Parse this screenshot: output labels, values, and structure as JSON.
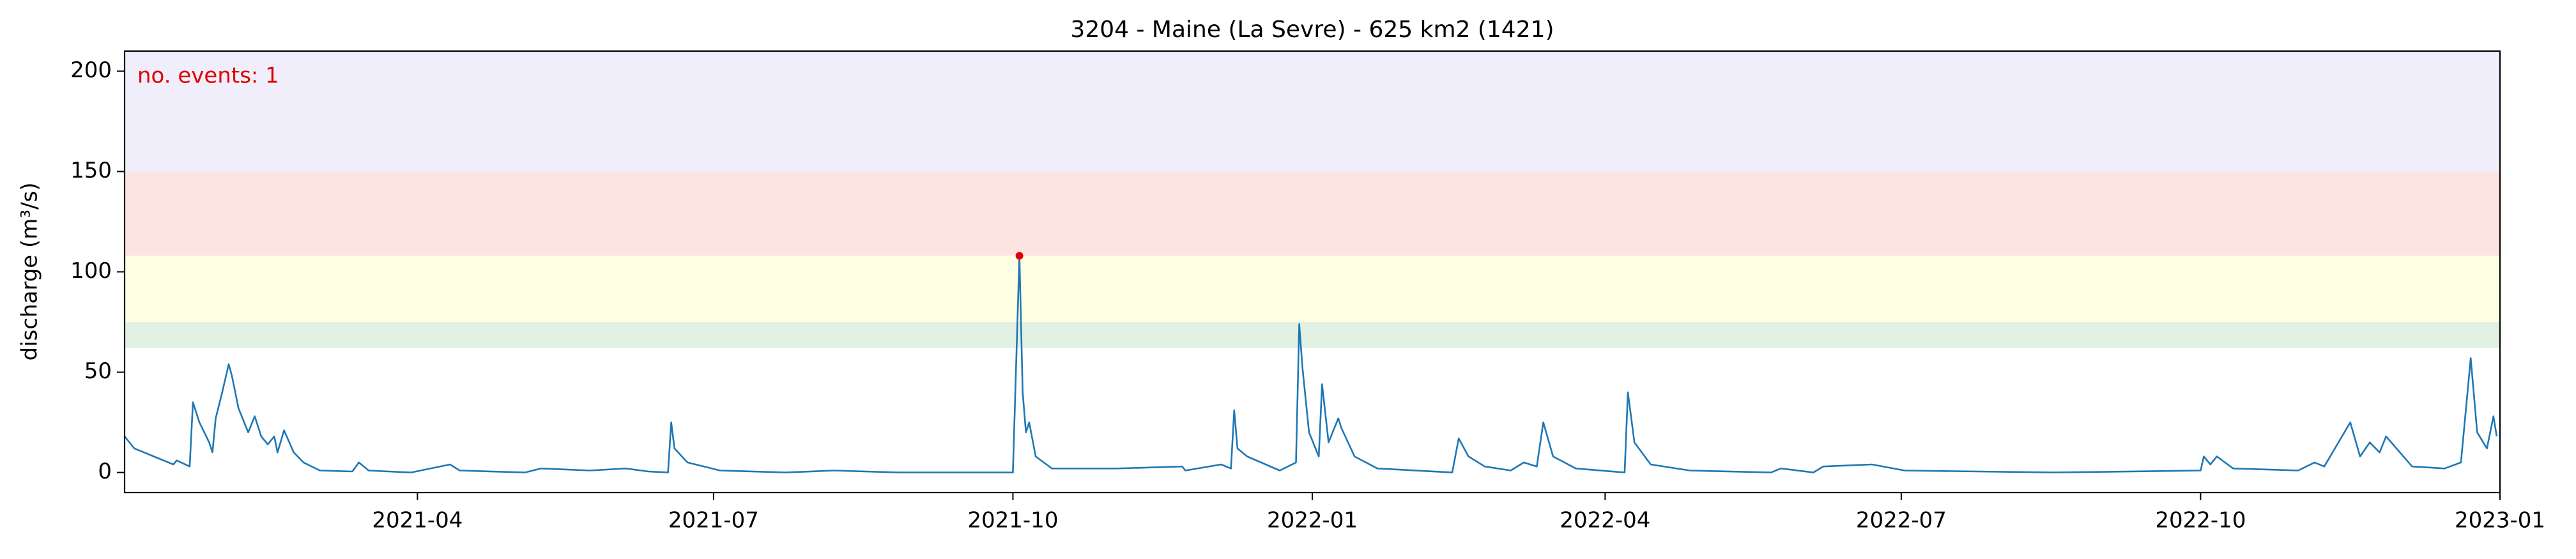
{
  "chart_data": {
    "type": "line",
    "title": "3204 - Maine (La Sevre) - 625 km2 (1421)",
    "ylabel": "discharge (m³/s)",
    "annotation": "no. events: 1",
    "annotation_color": "#e00000",
    "xlim": [
      "2021-01-01",
      "2023-01-01"
    ],
    "xticks": [
      "2021-04",
      "2021-07",
      "2021-10",
      "2022-01",
      "2022-04",
      "2022-07",
      "2022-10",
      "2023-01"
    ],
    "ylim": [
      -10,
      210
    ],
    "yticks": [
      0,
      50,
      100,
      150,
      200
    ],
    "grid": false,
    "bands": [
      {
        "from": 62,
        "to": 75,
        "color": "#e3f1e3"
      },
      {
        "from": 75,
        "to": 108,
        "color": "#fefee3"
      },
      {
        "from": 108,
        "to": 150,
        "color": "#fee3e3"
      },
      {
        "from": 150,
        "to": 210,
        "color": "#f1eefb"
      }
    ],
    "series": [
      {
        "name": "discharge",
        "color": "#1f77b4",
        "x": [
          "2021-01-01",
          "2021-01-04",
          "2021-01-10",
          "2021-01-16",
          "2021-01-17",
          "2021-01-21",
          "2021-01-22",
          "2021-01-24",
          "2021-01-27",
          "2021-01-28",
          "2021-01-29",
          "2021-01-31",
          "2021-02-02",
          "2021-02-03",
          "2021-02-05",
          "2021-02-06",
          "2021-02-08",
          "2021-02-10",
          "2021-02-12",
          "2021-02-14",
          "2021-02-16",
          "2021-02-17",
          "2021-02-19",
          "2021-02-22",
          "2021-02-25",
          "2021-03-02",
          "2021-03-12",
          "2021-03-14",
          "2021-03-17",
          "2021-03-30",
          "2021-04-11",
          "2021-04-14",
          "2021-05-04",
          "2021-05-09",
          "2021-05-24",
          "2021-06-04",
          "2021-06-11",
          "2021-06-17",
          "2021-06-18",
          "2021-06-19",
          "2021-06-23",
          "2021-07-03",
          "2021-07-23",
          "2021-08-07",
          "2021-08-27",
          "2021-10-01",
          "2021-10-03",
          "2021-10-04",
          "2021-10-05",
          "2021-10-06",
          "2021-10-08",
          "2021-10-13",
          "2021-11-02",
          "2021-11-22",
          "2021-11-23",
          "2021-12-04",
          "2021-12-07",
          "2021-12-08",
          "2021-12-09",
          "2021-12-12",
          "2021-12-22",
          "2021-12-27",
          "2021-12-28",
          "2021-12-29",
          "2021-12-31",
          "2022-01-03",
          "2022-01-04",
          "2022-01-06",
          "2022-01-09",
          "2022-01-10",
          "2022-01-14",
          "2022-01-21",
          "2022-02-13",
          "2022-02-15",
          "2022-02-18",
          "2022-02-23",
          "2022-03-03",
          "2022-03-07",
          "2022-03-11",
          "2022-03-13",
          "2022-03-16",
          "2022-03-23",
          "2022-04-07",
          "2022-04-08",
          "2022-04-10",
          "2022-04-15",
          "2022-04-27",
          "2022-05-22",
          "2022-05-25",
          "2022-06-04",
          "2022-06-07",
          "2022-06-22",
          "2022-07-02",
          "2022-08-17",
          "2022-10-01",
          "2022-10-02",
          "2022-10-04",
          "2022-10-06",
          "2022-10-11",
          "2022-10-31",
          "2022-11-05",
          "2022-11-08",
          "2022-11-16",
          "2022-11-19",
          "2022-11-22",
          "2022-11-25",
          "2022-11-27",
          "2022-12-05",
          "2022-12-15",
          "2022-12-20",
          "2022-12-23",
          "2022-12-25",
          "2022-12-28",
          "2022-12-30",
          "2022-12-31"
        ],
        "values": [
          18,
          12,
          8,
          4,
          6,
          3,
          35,
          25,
          15,
          10,
          27,
          40,
          54,
          48,
          32,
          28,
          20,
          28,
          18,
          14,
          18,
          10,
          21,
          10,
          5,
          1,
          0.5,
          5,
          1,
          0,
          4,
          1,
          0,
          2,
          1,
          2,
          0.5,
          0,
          25,
          12,
          5,
          1,
          0,
          1,
          0,
          0,
          108,
          40,
          20,
          25,
          8,
          2,
          2,
          3,
          1,
          4,
          2,
          31,
          12,
          8,
          1,
          5,
          74,
          52,
          20,
          8,
          44,
          15,
          27,
          22,
          8,
          2,
          0,
          17,
          8,
          3,
          1,
          5,
          3,
          25,
          8,
          2,
          0,
          40,
          15,
          4,
          1,
          0,
          2,
          0,
          3,
          4,
          1,
          0,
          1,
          8,
          4,
          8,
          2,
          1,
          5,
          3,
          25,
          8,
          15,
          10,
          18,
          3,
          2,
          5,
          57,
          20,
          12,
          28,
          18
        ]
      }
    ],
    "events": {
      "x": [
        "2021-10-03"
      ],
      "values": [
        108
      ],
      "color": "#e00000"
    }
  }
}
